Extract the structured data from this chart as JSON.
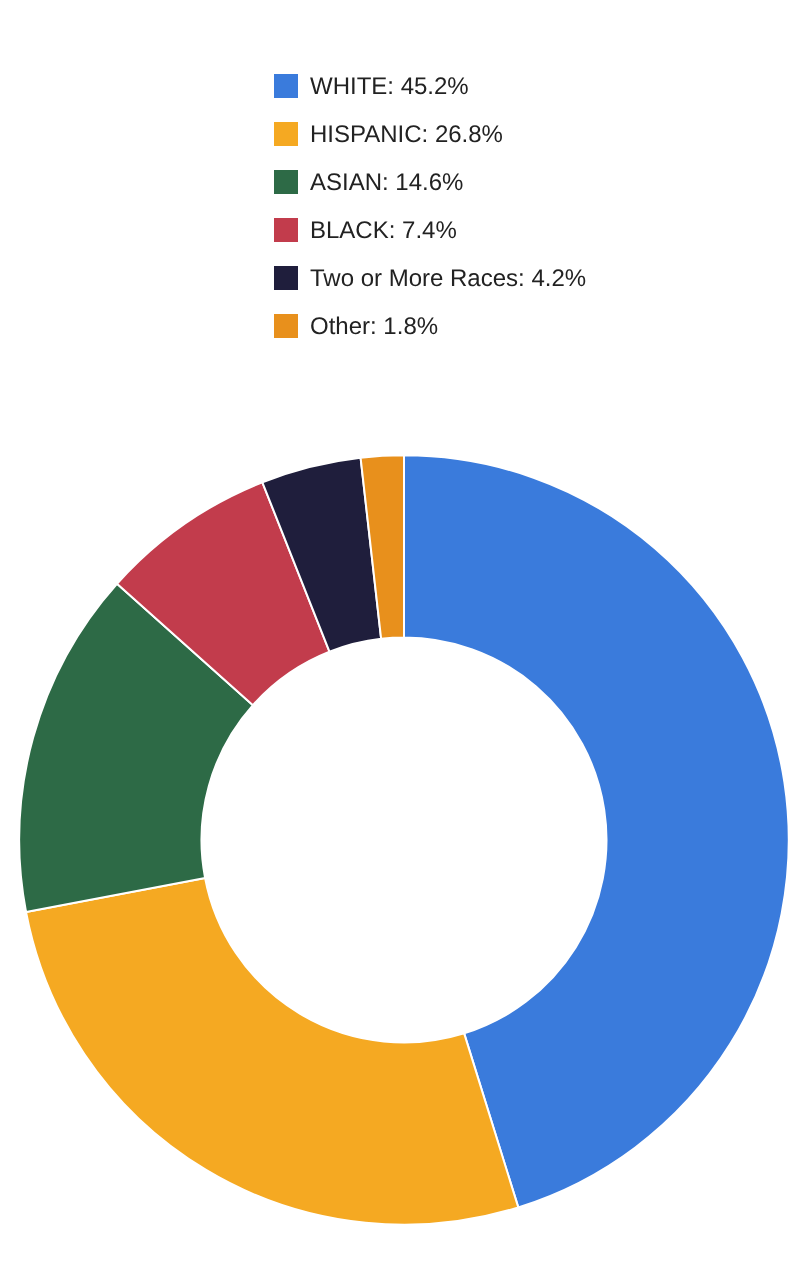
{
  "chart_data": {
    "type": "donut",
    "categories": [
      "WHITE: 45.2%",
      "HISPANIC: 26.8%",
      "ASIAN: 14.6%",
      "BLACK: 7.4%",
      "Two or More Races: 4.2%",
      "Other: 1.8%"
    ],
    "values": [
      45.2,
      26.8,
      14.6,
      7.4,
      4.2,
      1.8
    ],
    "colors": [
      "#3a7bdc",
      "#f5a922",
      "#2d6a46",
      "#c23c4c",
      "#1f1e3c",
      "#e8901c"
    ],
    "legend": "right"
  }
}
